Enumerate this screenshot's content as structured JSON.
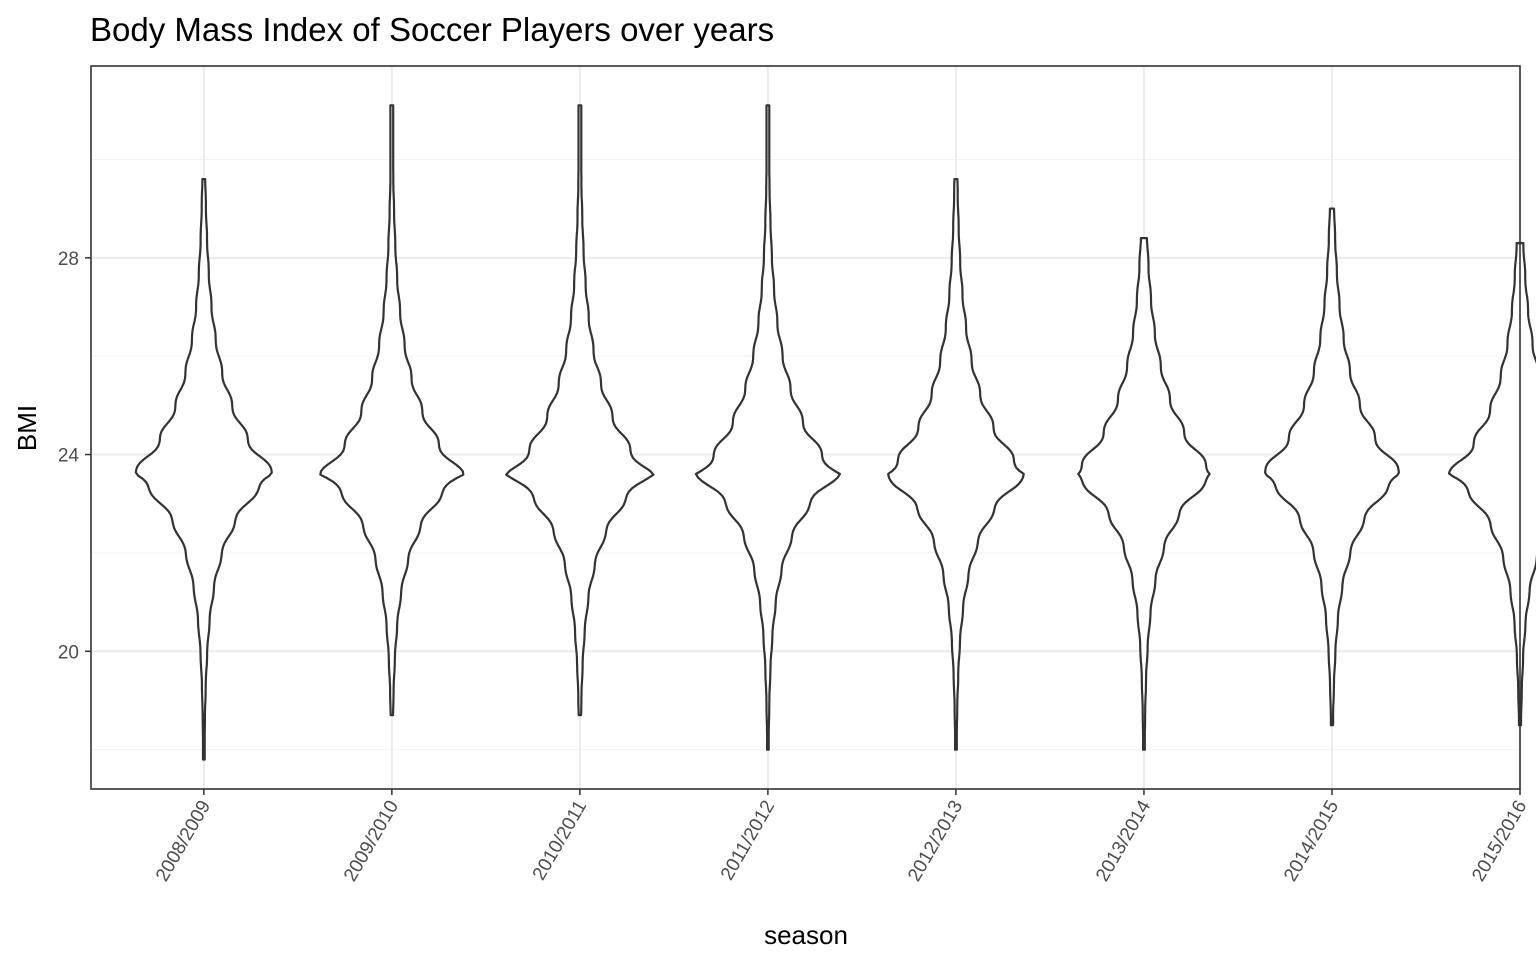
{
  "chart_data": {
    "type": "violin",
    "title": "Body Mass Index of Soccer Players over years",
    "xlabel": "season",
    "ylabel": "BMI",
    "categories": [
      "2008/2009",
      "2009/2010",
      "2010/2011",
      "2011/2012",
      "2012/2013",
      "2013/2014",
      "2014/2015",
      "2015/2016"
    ],
    "yticks": [
      20,
      24,
      28
    ],
    "ylim": [
      17.2,
      31.9
    ],
    "grid": true,
    "color": "#333333",
    "series": [
      {
        "category": "2008/2009",
        "min": 17.8,
        "max": 29.6,
        "mode": 23.6
      },
      {
        "category": "2009/2010",
        "min": 18.7,
        "max": 31.1,
        "mode": 23.6
      },
      {
        "category": "2010/2011",
        "min": 18.7,
        "max": 31.1,
        "mode": 23.6
      },
      {
        "category": "2011/2012",
        "min": 18.0,
        "max": 31.1,
        "mode": 23.6
      },
      {
        "category": "2012/2013",
        "min": 18.0,
        "max": 29.6,
        "mode": 23.6
      },
      {
        "category": "2013/2014",
        "min": 18.0,
        "max": 28.4,
        "mode": 23.6
      },
      {
        "category": "2014/2015",
        "min": 18.5,
        "max": 29.0,
        "mode": 23.6
      },
      {
        "category": "2015/2016",
        "min": 18.5,
        "max": 28.3,
        "mode": 23.6
      }
    ]
  }
}
